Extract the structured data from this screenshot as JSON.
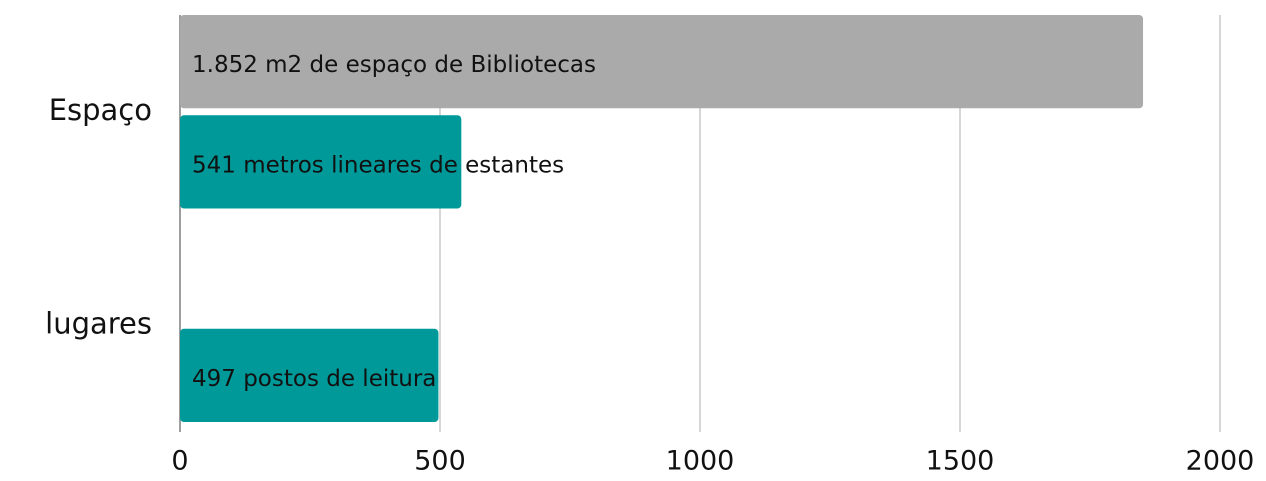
{
  "chart_data": {
    "type": "bar",
    "orientation": "horizontal",
    "categories": [
      "Espaço",
      "lugares"
    ],
    "series": [
      {
        "color": "#aaaaaa",
        "values": [
          1852,
          null
        ],
        "value_labels": [
          "1.852 m2 de espaço de Bibliotecas",
          null
        ]
      },
      {
        "color": "#009999",
        "values": [
          541,
          497
        ],
        "value_labels": [
          "541 metros lineares de estantes",
          "497 postos de leitura"
        ]
      }
    ],
    "xlim": [
      0,
      2000
    ],
    "xticks": [
      0,
      500,
      1000,
      1500,
      2000
    ],
    "grid": true
  }
}
